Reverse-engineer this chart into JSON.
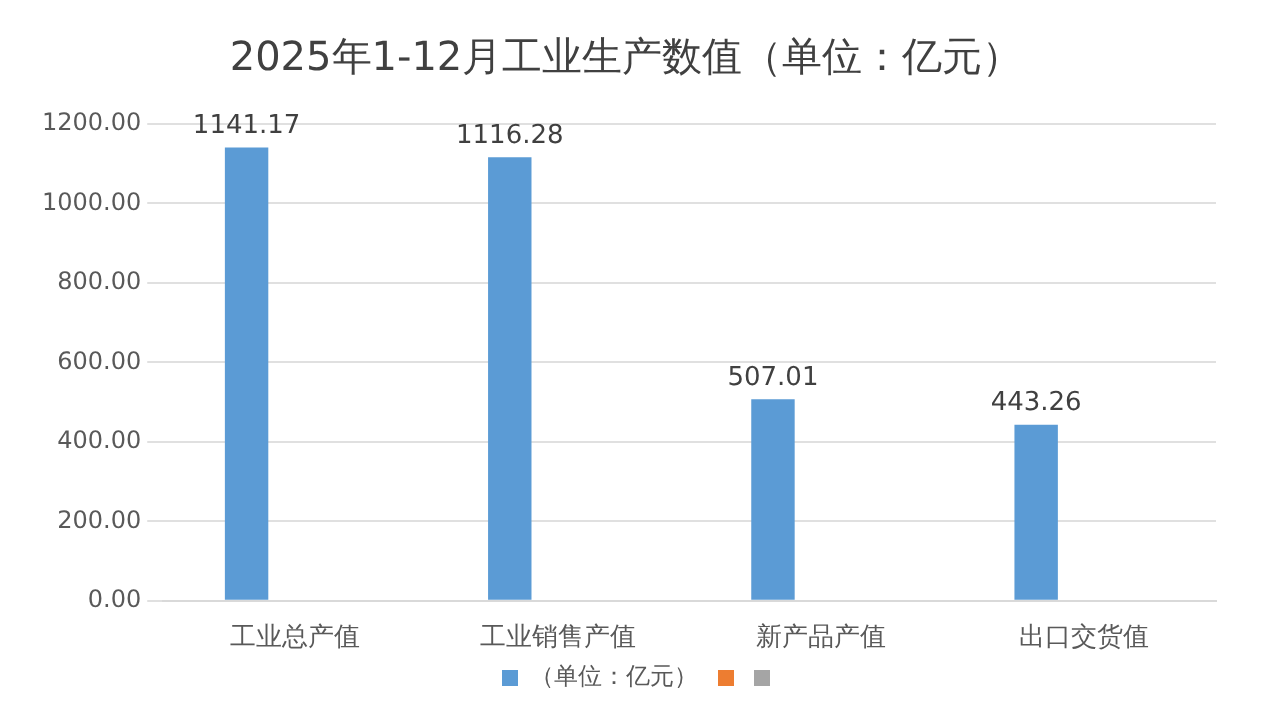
{
  "chart_data": {
    "type": "bar",
    "title": "2025年1-12月工业生产数值（单位：亿元）",
    "categories": [
      "工业总产值",
      "工业销售产值",
      "新产品产值",
      "出口交货值"
    ],
    "series": [
      {
        "name": "（单位：亿元）",
        "color": "#5b9bd5",
        "values": [
          1141.17,
          1116.28,
          507.01,
          443.26
        ]
      },
      {
        "color": "#ed7d31",
        "values": [
          null,
          null,
          null,
          null
        ]
      },
      {
        "color": "#a5a5a5",
        "values": [
          null,
          null,
          null,
          null
        ]
      }
    ],
    "ylim": [
      0,
      1200
    ],
    "yticks": [
      {
        "value": 0,
        "label": "0.00"
      },
      {
        "value": 200,
        "label": "200.00"
      },
      {
        "value": 400,
        "label": "400.00"
      },
      {
        "value": 600,
        "label": "600.00"
      },
      {
        "value": 800,
        "label": "800.00"
      },
      {
        "value": 1000,
        "label": "1000.00"
      },
      {
        "value": 1200,
        "label": "1200.00"
      }
    ],
    "grid": "y",
    "legend": "bottom",
    "data_labels": true
  }
}
